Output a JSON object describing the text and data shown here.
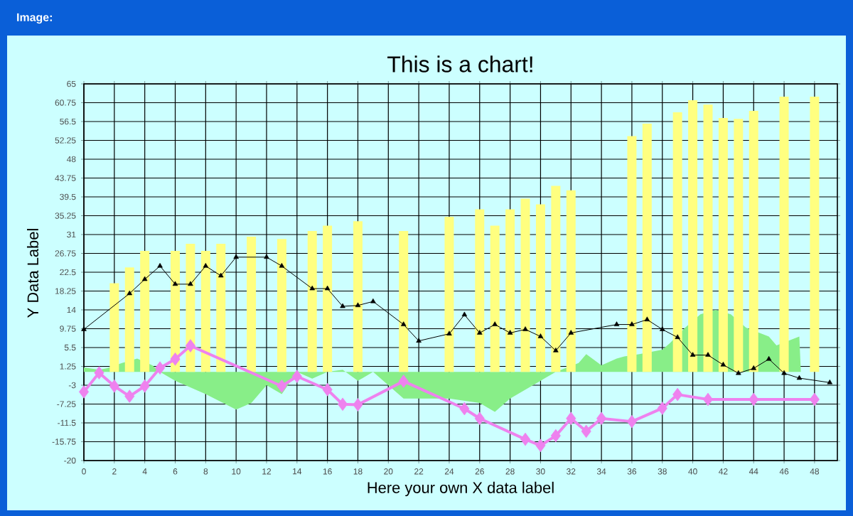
{
  "chart_data": {
    "type": "line",
    "title": "This is a chart!",
    "xlabel": "Here your own X data label",
    "ylabel": "Y Data Label",
    "annotations": [
      "Image:"
    ],
    "xlim": [
      0,
      49.5
    ],
    "ylim": [
      -20,
      65
    ],
    "xticks": [
      0,
      2,
      4,
      6,
      8,
      10,
      12,
      14,
      16,
      18,
      20,
      22,
      24,
      26,
      28,
      30,
      32,
      34,
      36,
      38,
      40,
      42,
      44,
      46,
      48
    ],
    "yticks": [
      -20,
      -15.75,
      -11.5,
      -7.25,
      -3,
      1.25,
      5.5,
      9.75,
      14,
      18.25,
      22.5,
      26.75,
      31,
      35.25,
      39.5,
      43.75,
      48,
      52.25,
      56.5,
      60.75,
      65
    ],
    "grid": true,
    "series": [
      {
        "type": "area",
        "color": "#88ee88",
        "x": [
          0,
          1,
          1.5,
          2.5,
          3.5,
          4.5,
          5,
          6,
          8,
          10,
          11,
          12,
          13,
          14,
          15,
          16,
          17,
          18,
          19,
          20,
          21,
          22,
          24,
          26,
          27,
          28,
          29,
          30,
          31,
          32.5,
          33,
          34,
          35,
          35.5,
          36.5,
          38,
          38.5,
          39.5,
          40.5,
          41.5,
          42.5,
          43.5,
          45,
          45.5,
          47,
          47.1
        ],
        "values": [
          1,
          0.5,
          0.8,
          2,
          3,
          1.5,
          0,
          -2,
          -5,
          -8.5,
          -7,
          -3,
          -5,
          0,
          -1.5,
          0,
          0.5,
          -2,
          0,
          -3,
          -6,
          -6,
          -6,
          -7,
          -9,
          -6,
          -4,
          -2,
          0,
          2,
          4,
          1.5,
          3,
          3.5,
          4,
          5,
          6.5,
          10,
          13,
          14,
          13,
          10,
          8,
          6,
          8,
          0
        ]
      },
      {
        "type": "bar",
        "color": "#ffff80",
        "x": [
          2,
          3,
          4,
          6,
          7,
          8,
          9,
          11,
          13,
          15,
          16,
          18,
          21,
          24,
          26,
          27,
          28,
          29,
          30,
          31,
          32,
          36,
          37,
          39,
          40,
          41,
          42,
          43,
          44,
          46,
          48
        ],
        "values": [
          20,
          23.6,
          27.3,
          27.3,
          28.9,
          27.3,
          28.9,
          30.5,
          30,
          31.8,
          33,
          34,
          31.8,
          35,
          36.7,
          33,
          36.7,
          39.1,
          37.8,
          42,
          41,
          53.2,
          56,
          58.6,
          61.3,
          60.3,
          57.3,
          57.1,
          58.9,
          62.1,
          62.1
        ]
      },
      {
        "color": "#000000",
        "marker": "triangle",
        "x": [
          0,
          3,
          4,
          5,
          6,
          7,
          8,
          9,
          10,
          12,
          13,
          15,
          16,
          17,
          18,
          19,
          21,
          22,
          24,
          25,
          26,
          27,
          28,
          29,
          30,
          31,
          32,
          35,
          36,
          37,
          38,
          39,
          40,
          41,
          42,
          43,
          44,
          45,
          46,
          47,
          49
        ],
        "values": [
          9.6,
          17.7,
          20.9,
          23.9,
          19.8,
          19.8,
          23.9,
          21.7,
          25.9,
          25.9,
          23.9,
          18.8,
          18.8,
          14.8,
          15,
          15.9,
          10.7,
          7,
          8.6,
          12.9,
          8.8,
          10.7,
          8.8,
          9.6,
          8,
          4.8,
          8.8,
          10.7,
          10.7,
          11.8,
          9.6,
          7.8,
          3.8,
          3.8,
          1.6,
          -0.3,
          0.8,
          2.9,
          -0.3,
          -1.4,
          -2.4
        ]
      },
      {
        "color": "#ee82ee",
        "marker": "diamond",
        "x": [
          0,
          1,
          2,
          3,
          4,
          5,
          6,
          7,
          13,
          14,
          16,
          17,
          18,
          21,
          25,
          26,
          29,
          30,
          31,
          32,
          33,
          34,
          36,
          38,
          39,
          41,
          44,
          48
        ],
        "values": [
          -4.5,
          -0.2,
          -3.2,
          -5.5,
          -3.2,
          0.9,
          2.9,
          5.9,
          -3.2,
          -1,
          -4,
          -7.3,
          -7.4,
          -2.1,
          -8.3,
          -10.5,
          -15.2,
          -16.6,
          -14.4,
          -10.5,
          -13.4,
          -10.5,
          -11.2,
          -8.2,
          -5.1,
          -6.2,
          -6.2,
          -6.2
        ]
      }
    ]
  }
}
